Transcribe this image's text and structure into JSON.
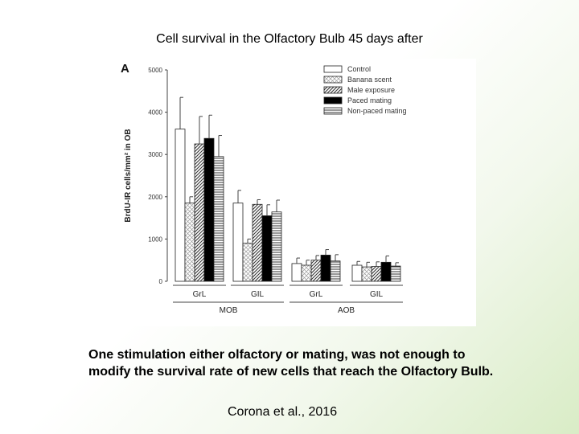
{
  "slide": {
    "title": "Cell survival in the Olfactory Bulb 45 days after",
    "caption_line1": "One stimulation either olfactory or mating, was not enough to",
    "caption_line2": "modify the survival rate of new cells that reach the Olfactory Bulb.",
    "citation": "Corona et al., 2016"
  },
  "chart_data": {
    "type": "bar",
    "panel_label": "A",
    "title": "",
    "ylabel": "BrdU-IR cells/mm² in OB",
    "ylim": [
      0,
      5000
    ],
    "yticks": [
      "0",
      "1000",
      "2000",
      "3000",
      "4000",
      "5000"
    ],
    "categories": [
      "GrL",
      "GIL",
      "GrL",
      "GIL"
    ],
    "groups": [
      {
        "label": "MOB",
        "categories": [
          0,
          1
        ]
      },
      {
        "label": "AOB",
        "categories": [
          2,
          3
        ]
      }
    ],
    "legend_position": "top-right",
    "series": [
      {
        "name": "Control",
        "pattern": "white",
        "values": [
          3600,
          1850,
          420,
          380
        ],
        "errors": [
          750,
          300,
          130,
          90
        ]
      },
      {
        "name": "Banana scent",
        "pattern": "crosshatch",
        "values": [
          1850,
          900,
          380,
          340
        ],
        "errors": [
          150,
          100,
          120,
          110
        ]
      },
      {
        "name": "Male exposure",
        "pattern": "diagonal",
        "values": [
          3250,
          1820,
          500,
          350
        ],
        "errors": [
          650,
          110,
          110,
          110
        ]
      },
      {
        "name": "Paced mating",
        "pattern": "black",
        "values": [
          3380,
          1550,
          620,
          450
        ],
        "errors": [
          550,
          260,
          130,
          150
        ]
      },
      {
        "name": "Non-paced mating",
        "pattern": "horizontal",
        "values": [
          2950,
          1640,
          480,
          360
        ],
        "errors": [
          500,
          280,
          150,
          80
        ]
      }
    ]
  }
}
